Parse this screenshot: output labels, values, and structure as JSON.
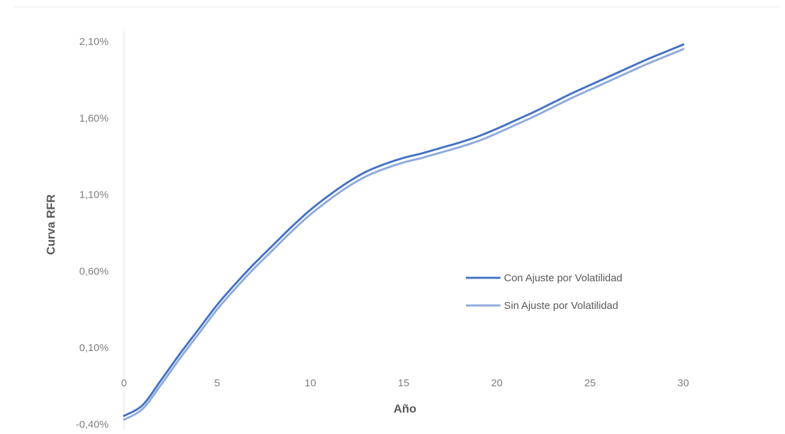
{
  "chart_data": {
    "type": "line",
    "xlabel": "Año",
    "ylabel": "Curva RFR",
    "xlim": [
      0,
      30
    ],
    "ylim": [
      -0.4,
      2.1
    ],
    "x_ticks": [
      0,
      5,
      10,
      15,
      20,
      25,
      30
    ],
    "x_tick_labels": [
      "0",
      "5",
      "10",
      "15",
      "20",
      "25",
      "30"
    ],
    "y_ticks": [
      -0.4,
      0.1,
      0.6,
      1.1,
      1.6,
      2.1
    ],
    "y_tick_labels": [
      "-0,40%",
      "0,10%",
      "0,60%",
      "1,10%",
      "1,60%",
      "2,10%"
    ],
    "grid": false,
    "legend_position": "right-center",
    "x": [
      0,
      1,
      2,
      3,
      4,
      5,
      6,
      7,
      8,
      9,
      10,
      11,
      12,
      13,
      14,
      15,
      16,
      17,
      18,
      19,
      20,
      21,
      22,
      23,
      24,
      25,
      26,
      27,
      28,
      29,
      30
    ],
    "series": [
      {
        "name": "Con Ajuste por Volatilidad",
        "color": "#4472c4",
        "values": [
          -0.345,
          -0.275,
          -0.11,
          0.06,
          0.22,
          0.38,
          0.52,
          0.65,
          0.77,
          0.89,
          1.0,
          1.095,
          1.18,
          1.25,
          1.3,
          1.34,
          1.37,
          1.405,
          1.44,
          1.48,
          1.53,
          1.585,
          1.64,
          1.7,
          1.76,
          1.815,
          1.87,
          1.925,
          1.98,
          2.03,
          2.08
        ]
      },
      {
        "name": "Sin Ajuste por Volatilidad",
        "color": "#8faadc",
        "values": [
          -0.37,
          -0.3,
          -0.14,
          0.03,
          0.19,
          0.35,
          0.49,
          0.62,
          0.74,
          0.86,
          0.97,
          1.065,
          1.15,
          1.22,
          1.27,
          1.31,
          1.34,
          1.375,
          1.41,
          1.45,
          1.5,
          1.555,
          1.61,
          1.67,
          1.73,
          1.785,
          1.84,
          1.895,
          1.95,
          2.0,
          2.05
        ]
      }
    ]
  }
}
